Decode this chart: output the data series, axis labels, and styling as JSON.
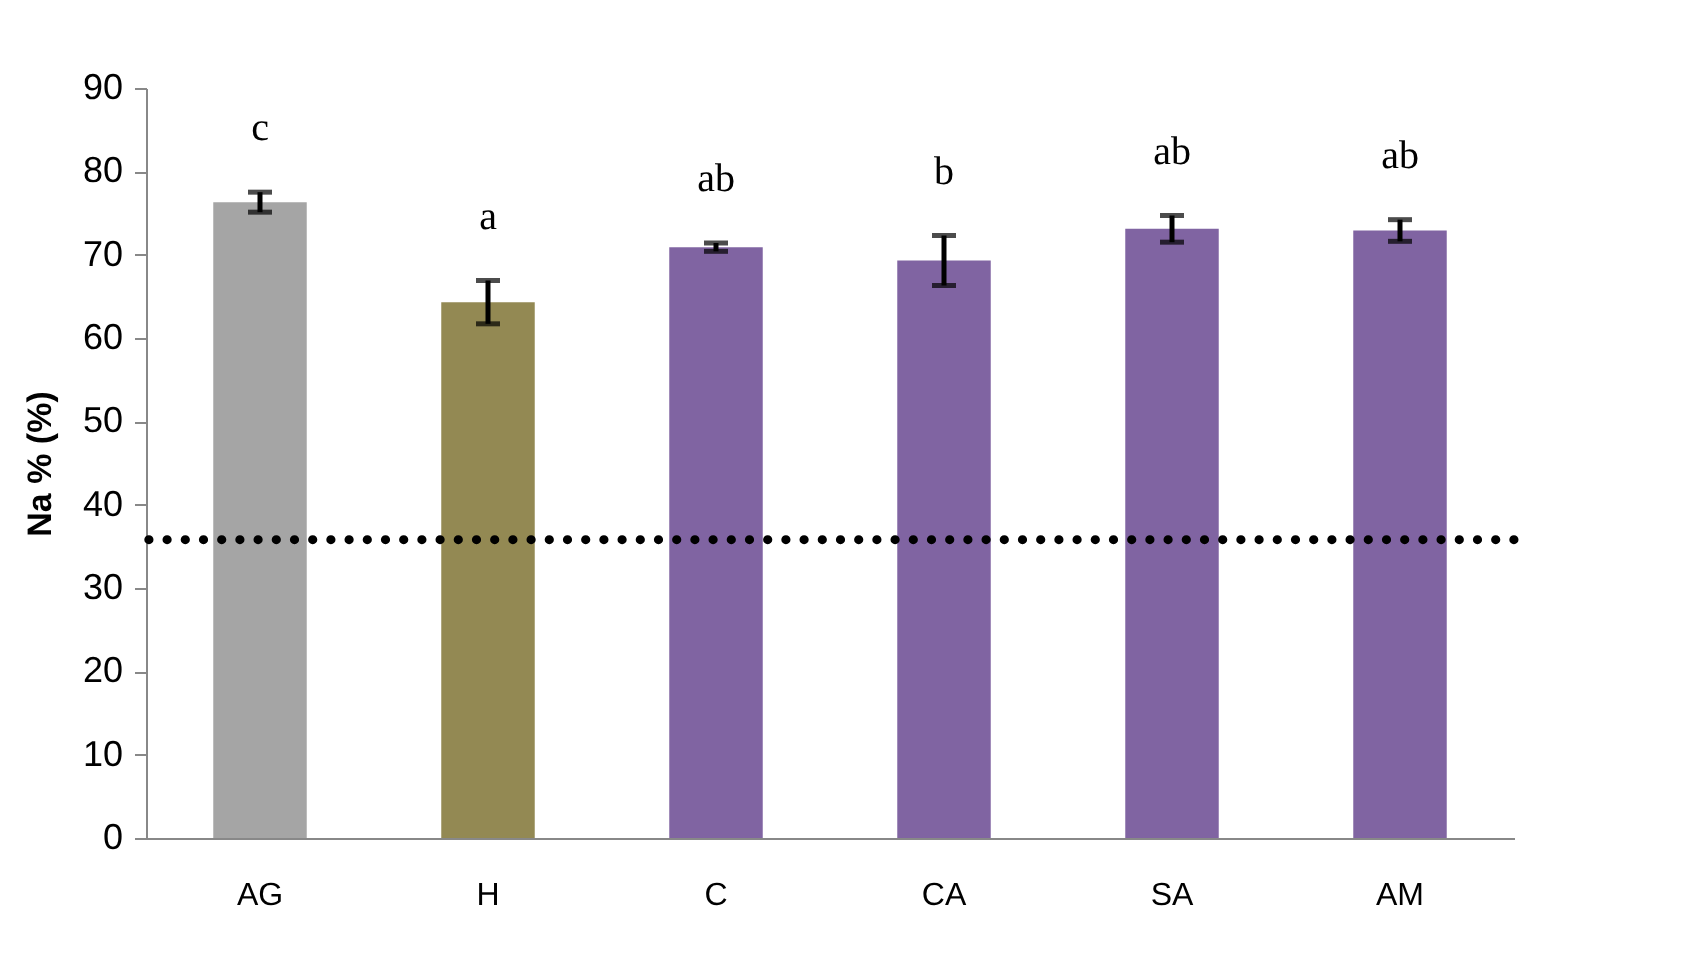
{
  "chart_data": {
    "type": "bar",
    "ylabel": "Na % (%)",
    "categories": [
      "AG",
      "H",
      "C",
      "CA",
      "SA",
      "AM"
    ],
    "values": [
      76.3,
      64.3,
      70.9,
      69.3,
      73.1,
      72.9
    ],
    "colors": [
      "#a5a5a5",
      "#938953",
      "#8064a2",
      "#8064a2",
      "#8064a2",
      "#8064a2"
    ],
    "errors": [
      1.2,
      2.6,
      0.5,
      3.0,
      1.6,
      1.3
    ],
    "ylim": [
      0,
      90
    ],
    "yticks": [
      0,
      10,
      20,
      30,
      40,
      50,
      60,
      70,
      80,
      90
    ],
    "grid": false,
    "ref_lines": [
      {
        "axis": "y",
        "value": 35.8,
        "line_style": "dotted",
        "color": "#000000"
      }
    ],
    "annotations": [
      "c",
      "a",
      "ab",
      "b",
      "ab",
      "ab"
    ]
  }
}
